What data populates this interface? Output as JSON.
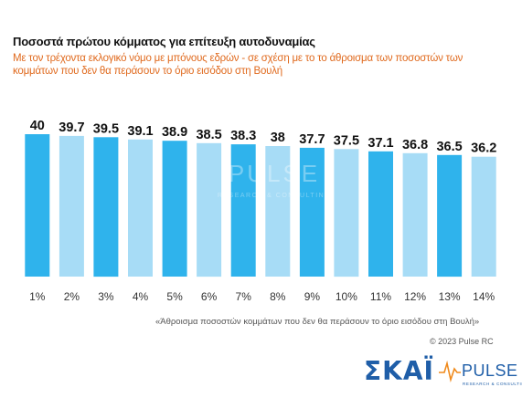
{
  "title": "Ποσοστά πρώτου κόμματος για επίτευξη αυτοδυναμίας",
  "subtitle": "Με τον τρέχοντα εκλογικό νόμο με μπόνους εδρών - σε σχέση με το το άθροισμα των ποσοστών των κομμάτων που δεν θα περάσουν το όριο εισόδου στη Βουλή",
  "footnote": "«Άθροισμα ποσοστών κομμάτων που δεν θα περάσουν το όριο εισόδου στη Βουλή»",
  "copyright": "© 2023 Pulse RC",
  "watermark": {
    "brand": "PULSE",
    "tagline": "RESEARCH & CONSULTING"
  },
  "logos": {
    "skai": "ΣΚΑΪ",
    "pulse": "PULSE",
    "pulse_tagline": "RESEARCH & CONSULTING"
  },
  "colors": {
    "bar_dark": "#2fb3ec",
    "bar_light": "#a7dcf6",
    "subtitle": "#e06a1e",
    "skai_blue": "#1f5ea8",
    "pulse_orange": "#f08a1c"
  },
  "chart_data": {
    "type": "bar",
    "categories": [
      "1%",
      "2%",
      "3%",
      "4%",
      "5%",
      "6%",
      "7%",
      "8%",
      "9%",
      "10%",
      "11%",
      "12%",
      "13%",
      "14%"
    ],
    "values": [
      40,
      39.7,
      39.5,
      39.1,
      38.9,
      38.5,
      38.3,
      38,
      37.7,
      37.5,
      37.1,
      36.8,
      36.5,
      36.2
    ],
    "value_labels": [
      "40",
      "39.7",
      "39.5",
      "39.1",
      "38.9",
      "38.5",
      "38.3",
      "38",
      "37.7",
      "37.5",
      "37.1",
      "36.8",
      "36.5",
      "36.2"
    ],
    "bar_shades": [
      "dark",
      "light",
      "dark",
      "light",
      "dark",
      "light",
      "dark",
      "light",
      "dark",
      "light",
      "dark",
      "light",
      "dark",
      "light"
    ],
    "title": "Ποσοστά πρώτου κόμματος για επίτευξη αυτοδυναμίας",
    "xlabel": "«Άθροισμα ποσοστών κομμάτων που δεν θα περάσουν το όριο εισόδου στη Βουλή»",
    "ylabel": "",
    "grid": false,
    "legend": "none"
  }
}
